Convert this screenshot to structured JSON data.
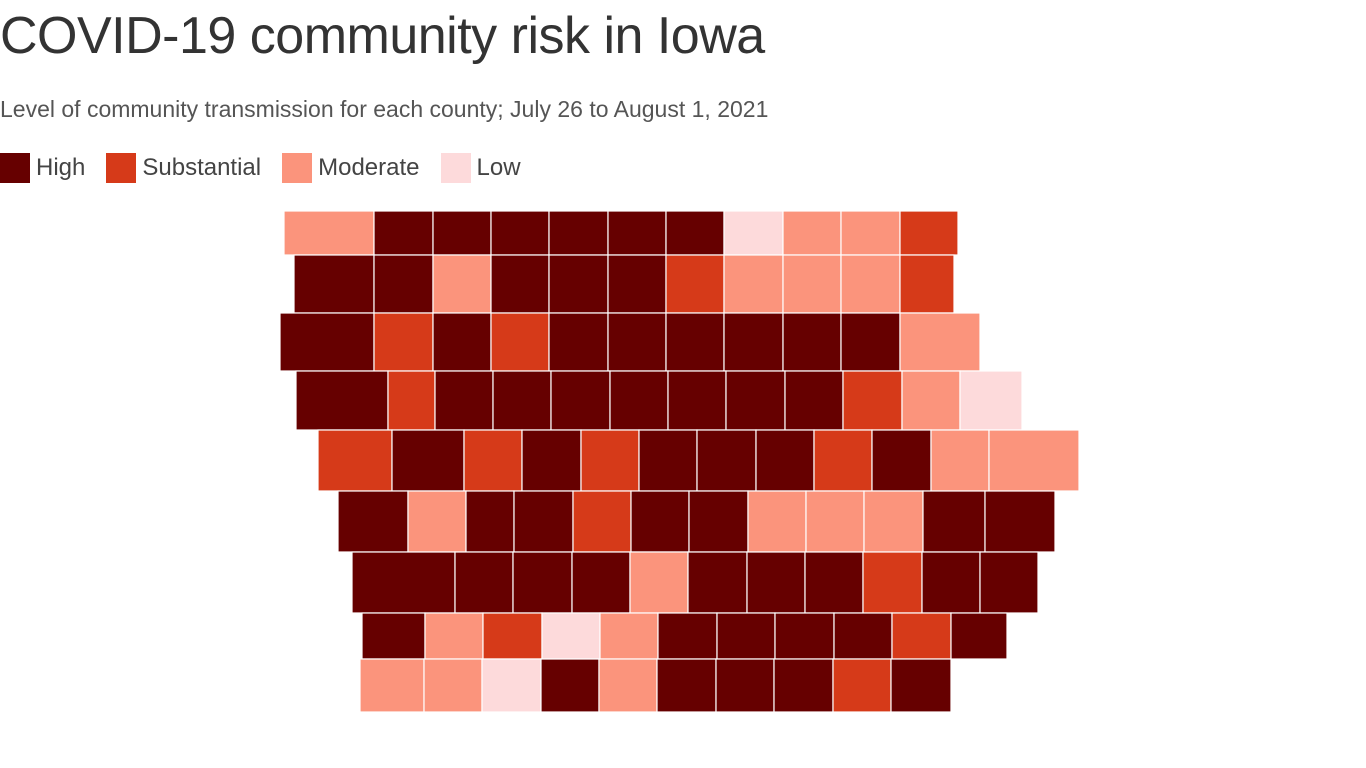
{
  "title": "COVID-19 community risk in Iowa",
  "subtitle": "Level of community transmission for each county; July 26 to August 1, 2021",
  "legend": [
    {
      "level": "high",
      "label": "High",
      "color": "#660000"
    },
    {
      "level": "substantial",
      "label": "Substantial",
      "color": "#d63a19"
    },
    {
      "level": "moderate",
      "label": "Moderate",
      "color": "#fb947c"
    },
    {
      "level": "low",
      "label": "Low",
      "color": "#fddadb"
    }
  ],
  "map": {
    "region": "Iowa",
    "grid_rows": [
      [
        "moderate",
        "high",
        "high",
        "high",
        "high",
        "high",
        "high",
        "low",
        "moderate",
        "moderate",
        "substantial"
      ],
      [
        "high",
        "high",
        "moderate",
        "high",
        "high",
        "high",
        "substantial",
        "moderate",
        "moderate",
        "moderate",
        "substantial"
      ],
      [
        "high",
        "substantial",
        "high",
        "substantial",
        "high",
        "high",
        "high",
        "high",
        "high",
        "high",
        "moderate"
      ],
      [
        "high",
        "substantial",
        "high",
        "high",
        "high",
        "high",
        "high",
        "high",
        "high",
        "substantial",
        "moderate",
        "low"
      ],
      [
        "substantial",
        "high",
        "substantial",
        "high",
        "substantial",
        "high",
        "high",
        "high",
        "substantial",
        "high",
        "moderate",
        "moderate"
      ],
      [
        "high",
        "moderate",
        "high",
        "high",
        "substantial",
        "high",
        "high",
        "moderate",
        "moderate",
        "moderate",
        "high",
        "high"
      ],
      [
        "high",
        "high",
        "high",
        "high",
        "moderate",
        "high",
        "high",
        "high",
        "substantial",
        "high",
        "high"
      ],
      [
        "high",
        "moderate",
        "substantial",
        "low",
        "moderate",
        "high",
        "high",
        "high",
        "high",
        "substantial",
        "high"
      ],
      [
        "moderate",
        "moderate",
        "low",
        "high",
        "moderate",
        "high",
        "high",
        "high",
        "substantial",
        "high"
      ]
    ]
  }
}
